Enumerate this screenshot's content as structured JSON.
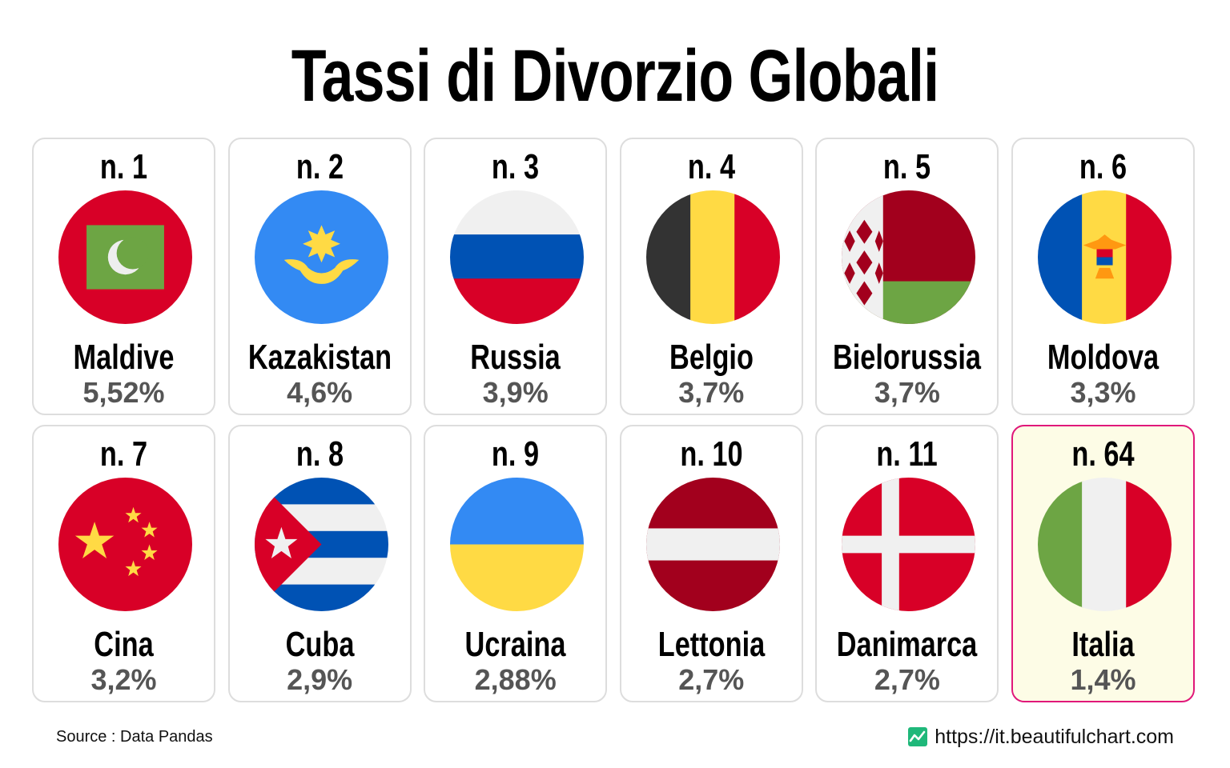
{
  "title": "Tassi di Divorzio Globali",
  "source": "Source : Data Pandas",
  "url": "https://it.beautifulchart.com",
  "colors": {
    "highlight_border": "#e0187a",
    "highlight_bg": "#fdfce6",
    "card_border": "#dddddd",
    "rate_text": "#555555"
  },
  "chart_data": {
    "type": "table",
    "unit": "%",
    "items": [
      {
        "rank": "n. 1",
        "country": "Maldive",
        "rate_label": "5,52%",
        "value": 5.52,
        "flag": "maldives-flag-icon"
      },
      {
        "rank": "n. 2",
        "country": "Kazakistan",
        "rate_label": "4,6%",
        "value": 4.6,
        "flag": "kazakhstan-flag-icon"
      },
      {
        "rank": "n. 3",
        "country": "Russia",
        "rate_label": "3,9%",
        "value": 3.9,
        "flag": "russia-flag-icon"
      },
      {
        "rank": "n. 4",
        "country": "Belgio",
        "rate_label": "3,7%",
        "value": 3.7,
        "flag": "belgium-flag-icon"
      },
      {
        "rank": "n. 5",
        "country": "Bielorussia",
        "rate_label": "3,7%",
        "value": 3.7,
        "flag": "belarus-flag-icon"
      },
      {
        "rank": "n. 6",
        "country": "Moldova",
        "rate_label": "3,3%",
        "value": 3.3,
        "flag": "moldova-flag-icon"
      },
      {
        "rank": "n. 7",
        "country": "Cina",
        "rate_label": "3,2%",
        "value": 3.2,
        "flag": "china-flag-icon"
      },
      {
        "rank": "n. 8",
        "country": "Cuba",
        "rate_label": "2,9%",
        "value": 2.9,
        "flag": "cuba-flag-icon"
      },
      {
        "rank": "n. 9",
        "country": "Ucraina",
        "rate_label": "2,88%",
        "value": 2.88,
        "flag": "ukraine-flag-icon"
      },
      {
        "rank": "n. 10",
        "country": "Lettonia",
        "rate_label": "2,7%",
        "value": 2.7,
        "flag": "latvia-flag-icon"
      },
      {
        "rank": "n. 11",
        "country": "Danimarca",
        "rate_label": "2,7%",
        "value": 2.7,
        "flag": "denmark-flag-icon"
      },
      {
        "rank": "n. 64",
        "country": "Italia",
        "rate_label": "1,4%",
        "value": 1.4,
        "flag": "italy-flag-icon",
        "highlighted": true
      }
    ]
  }
}
